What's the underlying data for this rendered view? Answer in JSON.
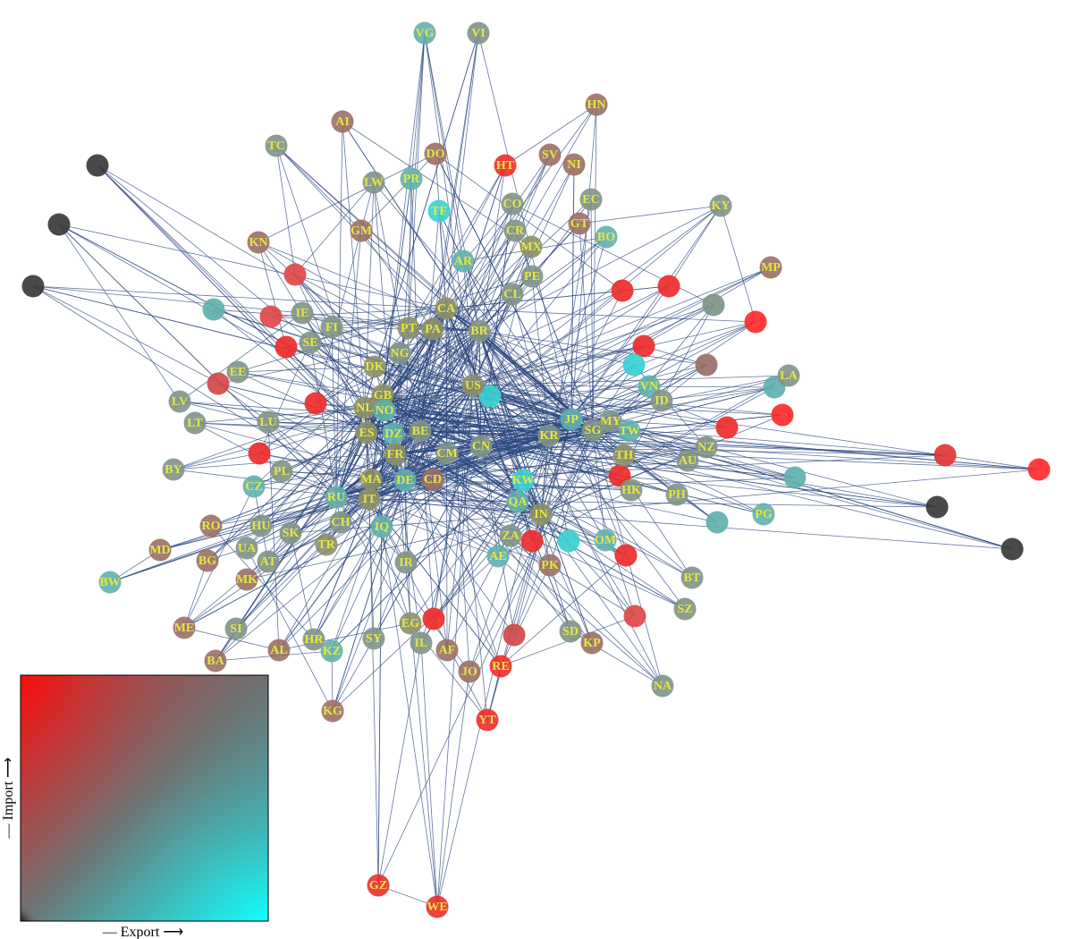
{
  "nodes": [
    "VG",
    "VI",
    "HN",
    "AI",
    "TC",
    "DO",
    "SV",
    "HT",
    "NI",
    "PR",
    "LW",
    "TF",
    "EC",
    "KY",
    "CO",
    "BO",
    "GT",
    "MX",
    "CR",
    "AR",
    "CL",
    "PE",
    "GM",
    "KN",
    "CA",
    "BR",
    "PA",
    "PT",
    "IE",
    "FI",
    "SE",
    "DK",
    "NG",
    "GB",
    "NL",
    "NO",
    "US",
    "JP",
    "MY",
    "SG",
    "TW",
    "KR",
    "CN",
    "ES",
    "DZ",
    "BE",
    "FR",
    "DE",
    "MA",
    "IT",
    "RU",
    "CH",
    "HU",
    "SK",
    "TR",
    "AT",
    "PL",
    "CZ",
    "RO",
    "UA",
    "BG",
    "BY",
    "LV",
    "LT",
    "LU",
    "EE",
    "AE",
    "ZA",
    "QA",
    "KW",
    "IN",
    "TH",
    "HK",
    "AU",
    "NZ",
    "PH",
    "VN",
    "ID",
    "OM",
    "PK",
    "BW",
    "MK",
    "SI",
    "HR",
    "KZ",
    "SY",
    "IL",
    "JO",
    "RE",
    "YT",
    "NA",
    "SZ",
    "BT",
    "SD",
    "KP",
    "MD",
    "ME",
    "BA",
    "AL",
    "KG",
    "GZ",
    "WE",
    "PG",
    "LA",
    "MP",
    "IQ",
    "IR",
    "EG",
    "AF",
    "CM",
    "CD"
  ],
  "legend": {
    "x_label": "— Export ⟶",
    "y_label": "— Import ⟶"
  }
}
